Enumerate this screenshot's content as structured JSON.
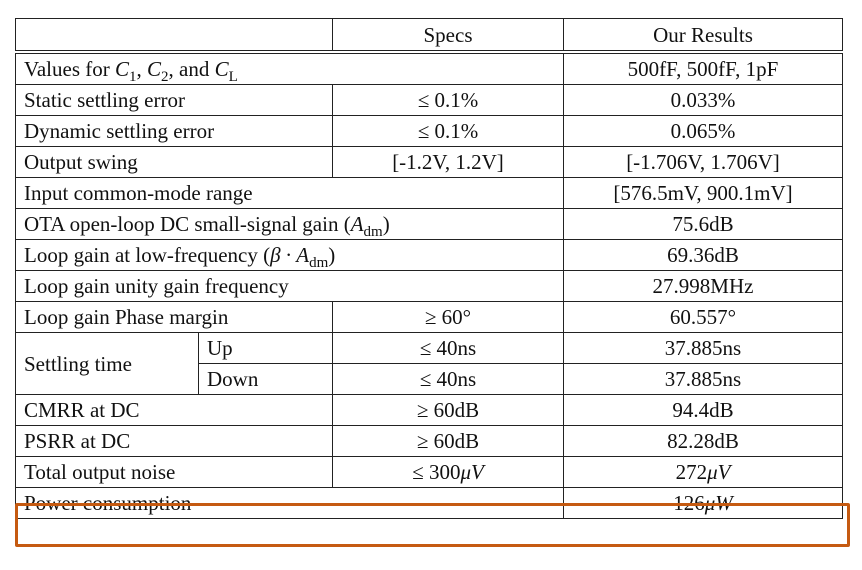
{
  "table": {
    "header": [
      "Specs",
      "Our Results"
    ],
    "rows": [
      {
        "label": [
          "Values for ",
          {
            "math": "C",
            "sub": "1"
          },
          ", ",
          {
            "math": "C",
            "sub": "2"
          },
          ", and ",
          {
            "math": "C",
            "sub": "L"
          }
        ],
        "result": "500fF, 500fF, 1pF"
      },
      {
        "label": "Static settling error",
        "spec": "≤ 0.1%",
        "result": "0.033%"
      },
      {
        "label": "Dynamic settling error",
        "spec": "≤ 0.1%",
        "result": "0.065%"
      },
      {
        "label": "Output swing",
        "spec": "[-1.2V, 1.2V]",
        "result": "[-1.706V, 1.706V]"
      },
      {
        "label": "Input common-mode range",
        "result": "[576.5mV, 900.1mV]"
      },
      {
        "label": [
          "OTA open-loop DC small-signal gain (",
          {
            "math": "A",
            "sub": "dm"
          },
          ")"
        ],
        "result": "75.6dB"
      },
      {
        "label": [
          "Loop gain at low-frequency (",
          {
            "math": "β · A",
            "sub": "dm"
          },
          ")"
        ],
        "result": "69.36dB"
      },
      {
        "label": "Loop gain unity gain frequency",
        "result": "27.998MHz"
      },
      {
        "label": "Loop gain Phase margin",
        "spec": "≥ 60°",
        "result": "60.557°"
      },
      {
        "label": "Settling time",
        "sub": [
          {
            "label": "Up",
            "spec": "≤ 40ns",
            "result": "37.885ns"
          },
          {
            "label": "Down",
            "spec": "≤ 40ns",
            "result": "37.885ns"
          }
        ]
      },
      {
        "label": "CMRR at DC",
        "spec": "≥ 60dB",
        "result": "94.4dB"
      },
      {
        "label": "PSRR at DC",
        "spec": "≥ 60dB",
        "result": "82.28dB"
      },
      {
        "label": "Total output noise",
        "spec": [
          "≤ 300",
          {
            "math": "μV"
          }
        ],
        "result": [
          "272",
          {
            "math": "μV"
          }
        ]
      },
      {
        "label": "Power consumption",
        "result": [
          "126",
          {
            "math": "μW"
          }
        ]
      }
    ]
  }
}
